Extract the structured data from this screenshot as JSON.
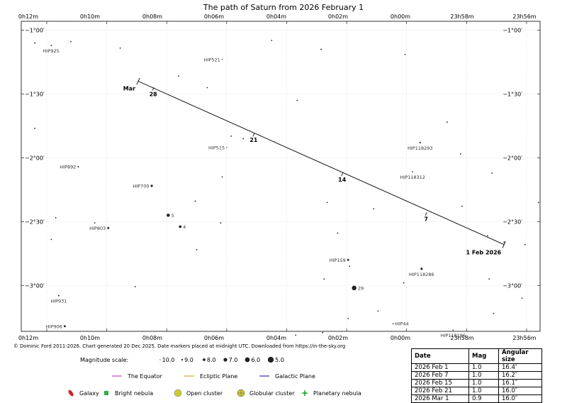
{
  "chart_data": {
    "type": "scatter",
    "title": "The path of Saturn from 2026 February 1",
    "x_ticks": [
      "0h12m",
      "0h10m",
      "0h08m",
      "0h06m",
      "0h04m",
      "0h02m",
      "0h00m",
      "23h58m",
      "23h56m"
    ],
    "y_ticks": [
      "−1°00′",
      "−1°30′",
      "−2°00′",
      "−2°30′",
      "−3°00′"
    ],
    "x_min_ra_minutes_offset": 12.85,
    "x_max_ra_minutes_offset": -4.45,
    "ylim_degrees": [
      -3.36,
      -0.93
    ],
    "path": {
      "start": {
        "ra_min": -3.25,
        "dec": -2.68,
        "label": "1 Feb 2026"
      },
      "end": {
        "ra_min": 8.95,
        "dec": -1.4,
        "label": "Mar"
      },
      "markers": [
        {
          "label": "7",
          "ra_min": -0.65,
          "dec": -2.44
        },
        {
          "label": "14",
          "ra_min": 2.15,
          "dec": -2.13
        },
        {
          "label": "21",
          "ra_min": 5.1,
          "dec": -1.82
        },
        {
          "label": "28",
          "ra_min": 8.45,
          "dec": -1.46
        }
      ]
    },
    "stars": [
      {
        "name": "HIP925",
        "ra_min": 11.85,
        "dec": -1.12,
        "mag": 9.3
      },
      {
        "name": "HIP521",
        "ra_min": 6.15,
        "dec": -1.23,
        "mag": 9.6
      },
      {
        "name": "HIP515",
        "ra_min": 6.0,
        "dec": -1.92,
        "mag": 9.6
      },
      {
        "name": "HIP118293",
        "ra_min": -0.45,
        "dec": -1.88,
        "mag": 9.0
      },
      {
        "name": "HIP892",
        "ra_min": 10.95,
        "dec": -2.07,
        "mag": 9.2
      },
      {
        "name": "HIP118312",
        "ra_min": -0.2,
        "dec": -2.11,
        "mag": 9.4
      },
      {
        "name": "HIP700",
        "ra_min": 8.5,
        "dec": -2.22,
        "mag": 8.4
      },
      {
        "name": "HIP803",
        "ra_min": 9.95,
        "dec": -2.55,
        "mag": 8.6
      },
      {
        "name": "HIP159",
        "ra_min": 1.95,
        "dec": -2.8,
        "mag": 8.6
      },
      {
        "name": "HIP118286",
        "ra_min": -0.5,
        "dec": -2.87,
        "mag": 8.4
      },
      {
        "name": "HIP931",
        "ra_min": 11.6,
        "dec": -3.08,
        "mag": 9.2
      },
      {
        "name": "HIP44",
        "ra_min": 0.45,
        "dec": -3.3,
        "mag": 9.4
      },
      {
        "name": "HIP906",
        "ra_min": 11.4,
        "dec": -3.32,
        "mag": 8.6
      },
      {
        "name": "HIP118186",
        "ra_min": -1.55,
        "dec": -3.35,
        "mag": 9.5
      },
      {
        "name": "5",
        "ra_min": 7.95,
        "dec": -2.45,
        "mag": 7.5
      },
      {
        "name": "4",
        "ra_min": 7.55,
        "dec": -2.54,
        "mag": 8.0
      },
      {
        "name": "29",
        "ra_min": 1.75,
        "dec": -3.02,
        "mag": 6.2
      }
    ],
    "faint_stars": [
      [
        12.4,
        -1.1
      ],
      [
        11.2,
        -1.09
      ],
      [
        9.55,
        -1.14
      ],
      [
        7.6,
        -1.36
      ],
      [
        4.5,
        -1.08
      ],
      [
        2.85,
        -1.15
      ],
      [
        0.05,
        -1.19
      ],
      [
        6.65,
        -1.45
      ],
      [
        3.65,
        -1.55
      ],
      [
        12.4,
        -1.77
      ],
      [
        -1.35,
        -1.72
      ],
      [
        -1.8,
        -1.97
      ],
      [
        5.45,
        -1.85
      ],
      [
        5.85,
        -1.83
      ],
      [
        -2.85,
        -2.12
      ],
      [
        -4.4,
        -2.35
      ],
      [
        6.15,
        -2.15
      ],
      [
        7.05,
        -2.34
      ],
      [
        2.65,
        -2.35
      ],
      [
        1.1,
        -2.4
      ],
      [
        -1.85,
        -2.38
      ],
      [
        11.7,
        -2.47
      ],
      [
        10.4,
        -2.51
      ],
      [
        6.2,
        -2.51
      ],
      [
        11.85,
        -2.64
      ],
      [
        2.3,
        -2.59
      ],
      [
        -2.7,
        -2.61
      ],
      [
        -3.25,
        -2.66
      ],
      [
        -3.95,
        -2.68
      ],
      [
        7.0,
        -2.72
      ],
      [
        1.9,
        -2.85
      ],
      [
        2.75,
        -2.95
      ],
      [
        0.1,
        -2.98
      ],
      [
        -2.75,
        -2.95
      ],
      [
        9.05,
        -3.01
      ],
      [
        -3.85,
        -3.1
      ],
      [
        0.95,
        -3.2
      ],
      [
        -2.9,
        -3.22
      ],
      [
        1.95,
        -3.26
      ],
      [
        3.7,
        -3.39
      ],
      [
        2.8,
        -3.37
      ]
    ],
    "legend": {
      "magnitude_scale_label": "Magnitude scale:",
      "magnitudes": [
        "10.0",
        "9.0",
        "8.0",
        "7.0",
        "6.0",
        "5.0"
      ],
      "lines": [
        {
          "label": "The Equator",
          "color": "#cc44cc"
        },
        {
          "label": "Ecliptic Plane",
          "color": "#ccaa22"
        },
        {
          "label": "Galactic Plane",
          "color": "#3333bb"
        }
      ],
      "objects": [
        {
          "label": "Galaxy",
          "icon": "galaxy-icon",
          "color": "#cc2222"
        },
        {
          "label": "Bright nebula",
          "icon": "bright-nebula-icon",
          "color": "#33aa44"
        },
        {
          "label": "Open cluster",
          "icon": "open-cluster-icon",
          "color": "#cccc33"
        },
        {
          "label": "Globular cluster",
          "icon": "globular-cluster-icon",
          "color": "#cccc33"
        },
        {
          "label": "Planetary nebula",
          "icon": "planetary-nebula-icon",
          "color": "#33aa44"
        }
      ]
    },
    "grid": true
  },
  "credit": "© Dominic Ford 2011-2026. Chart generated 20 Dec 2025. Date markers placed at midnight UTC. Downloaded from https://in-the-sky.org",
  "ephemeris": {
    "headers": [
      "Date",
      "Mag",
      "Angular size"
    ],
    "rows": [
      [
        "2026 Feb 1",
        "1.0",
        "16.4″"
      ],
      [
        "2026 Feb 7",
        "1.0",
        "16.2″"
      ],
      [
        "2026 Feb 15",
        "1.0",
        "16.1″"
      ],
      [
        "2026 Feb 21",
        "1.0",
        "16.0″"
      ],
      [
        "2026 Mar 1",
        "0.9",
        "16.0″"
      ]
    ]
  }
}
